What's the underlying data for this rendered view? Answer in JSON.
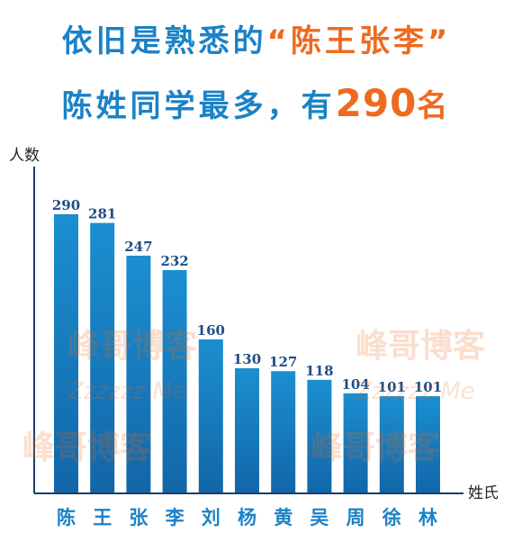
{
  "headline": {
    "line1_pre": "依旧是熟悉的",
    "line1_highlight": "“陈王张李”",
    "line2_pre": "陈姓同学最多，有",
    "line2_number": "290",
    "line2_suffix": "名"
  },
  "watermark": {
    "text": "峰哥博客",
    "sub": "Zzzzzz.Me"
  },
  "colors": {
    "bar": "#1b8fd0",
    "bar_dark": "#1266a8",
    "accent": "#ee6a1f",
    "text": "#1b82c6"
  },
  "chart_data": {
    "type": "bar",
    "title": "",
    "xlabel": "姓氏",
    "ylabel": "人数",
    "categories": [
      "陈",
      "王",
      "张",
      "李",
      "刘",
      "杨",
      "黄",
      "吴",
      "周",
      "徐",
      "林"
    ],
    "values": [
      290,
      281,
      247,
      232,
      160,
      130,
      127,
      118,
      104,
      101,
      101
    ],
    "ylim": [
      0,
      290
    ],
    "grid": false,
    "legend": "none"
  }
}
